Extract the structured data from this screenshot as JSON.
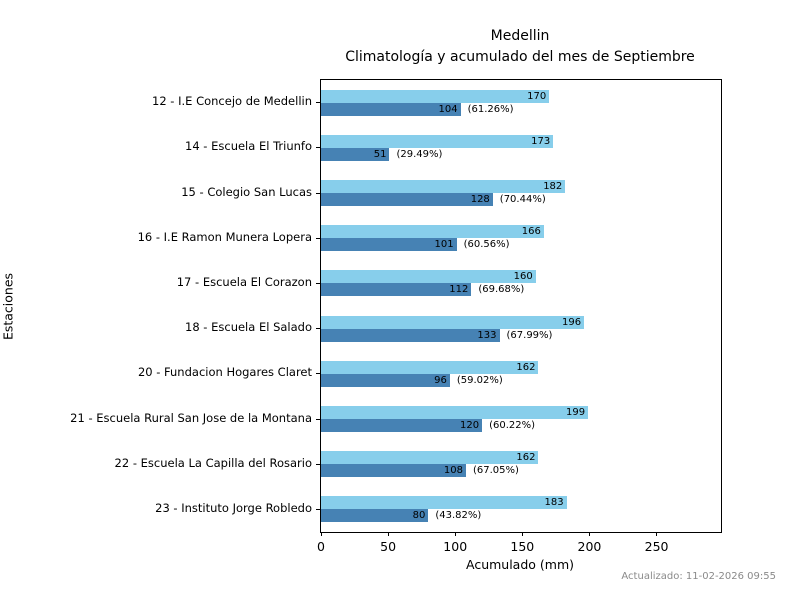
{
  "chart_data": {
    "type": "bar",
    "orientation": "horizontal",
    "title": "Medellin",
    "subtitle": "Climatología y acumulado del mes de Septiembre",
    "xlabel": "Acumulado (mm)",
    "ylabel": "Estaciones",
    "xlim": [
      0,
      298
    ],
    "xticks": [
      0,
      50,
      100,
      150,
      200,
      250
    ],
    "grid": false,
    "legend": "none",
    "categories": [
      "12 - I.E Concejo de Medellin",
      "14 - Escuela El Triunfo",
      "15 - Colegio San Lucas",
      "16 - I.E Ramon Munera Lopera",
      "17 - Escuela El Corazon",
      "18 - Escuela El Salado",
      "20 - Fundacion Hogares Claret",
      "21 - Escuela Rural San Jose de la Montana",
      "22 - Escuela La Capilla del Rosario",
      "23 - Instituto Jorge Robledo"
    ],
    "series": [
      {
        "name": "Climatología",
        "color": "#87CEEB",
        "values": [
          170,
          173,
          182,
          166,
          160,
          196,
          162,
          199,
          162,
          183
        ]
      },
      {
        "name": "Acumulado",
        "color": "#4682B4",
        "values": [
          104,
          51,
          128,
          101,
          112,
          133,
          96,
          120,
          108,
          80
        ]
      }
    ],
    "percent_labels": [
      "(61.26%)",
      "(29.49%)",
      "(70.44%)",
      "(60.56%)",
      "(69.68%)",
      "(67.99%)",
      "(59.02%)",
      "(60.22%)",
      "(67.05%)",
      "(43.82%)"
    ]
  },
  "footer": {
    "updated": "Actualizado: 11-02-2026 09:55"
  }
}
